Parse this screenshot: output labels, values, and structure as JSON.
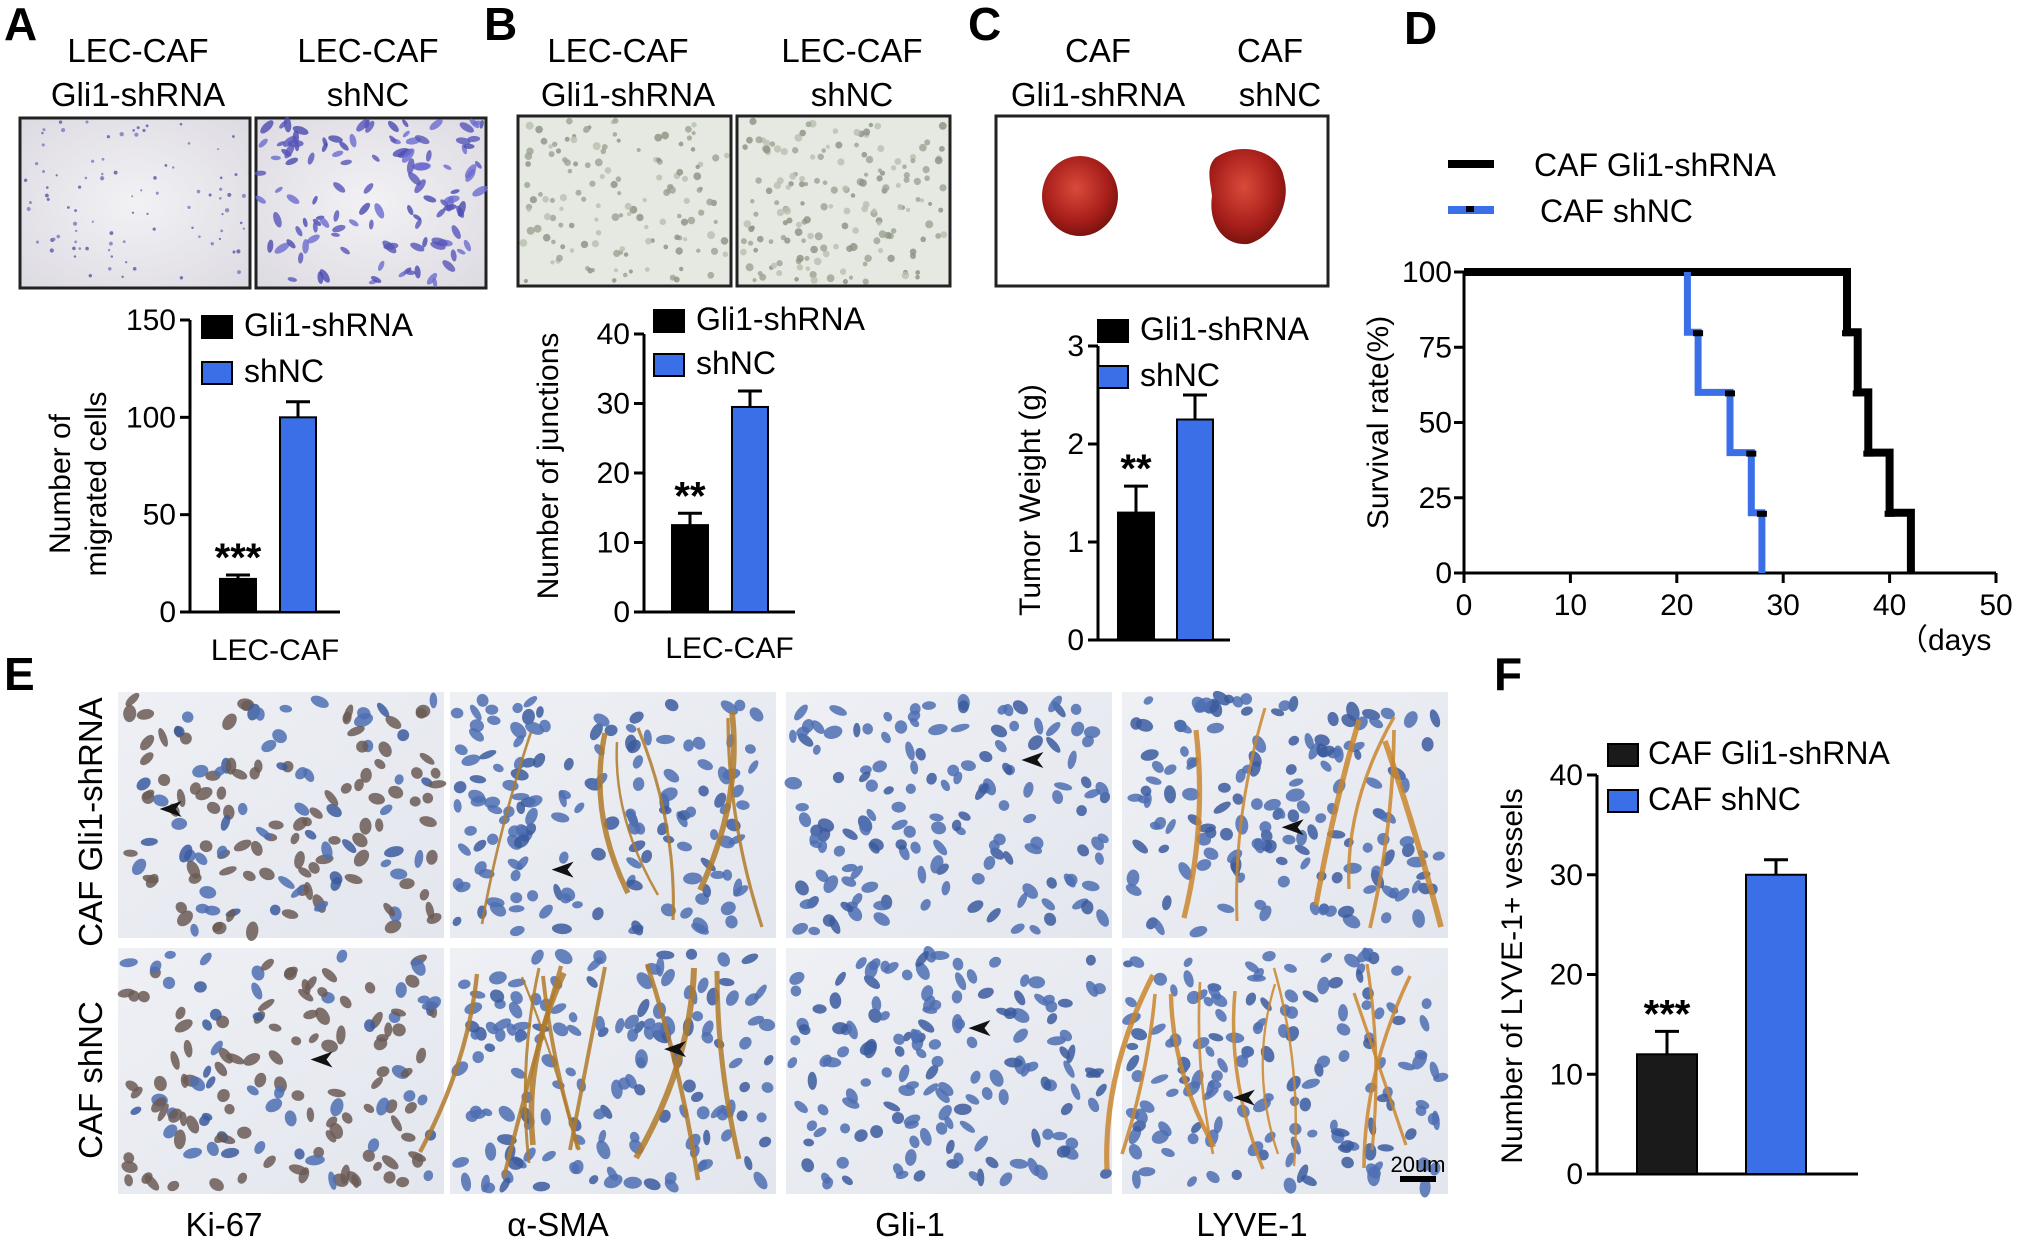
{
  "panels": {
    "A": {
      "label": "A",
      "col1": "LEC-CAF",
      "col1b": "Gli1-shRNA",
      "col2": "LEC-CAF",
      "col2b": "shNC"
    },
    "B": {
      "label": "B",
      "col1": "LEC-CAF",
      "col1b": "Gli1-shRNA",
      "col2": "LEC-CAF",
      "col2b": "shNC"
    },
    "C": {
      "label": "C",
      "col1": "CAF",
      "col1b": "Gli1-shRNA",
      "col2": "CAF",
      "col2b": "shNC"
    },
    "D": {
      "label": "D"
    },
    "E": {
      "label": "E",
      "row1": "CAF Gli1-shRNA",
      "row2": "CAF shNC",
      "stains": [
        "Ki-67",
        "α-SMA",
        "Gli-1",
        "LYVE-1"
      ],
      "scale": "20um"
    },
    "F": {
      "label": "F"
    }
  },
  "colors": {
    "black": "#000000",
    "blue": "#3a6fe8",
    "dark": "#1a1a1a"
  },
  "chart_data": [
    {
      "id": "A",
      "type": "bar",
      "ylabel": "Number of\nmigrated cells",
      "xlabel": "LEC-CAF",
      "ylim": [
        0,
        150
      ],
      "yticks": [
        "0",
        "50",
        "100",
        "150"
      ],
      "series": [
        {
          "name": "Gli1-shRNA",
          "value": 17,
          "error": 2,
          "color": "#000000",
          "annotation": "***"
        },
        {
          "name": "shNC",
          "value": 100,
          "error": 8,
          "color": "#3a6fe8",
          "annotation": ""
        }
      ]
    },
    {
      "id": "B",
      "type": "bar",
      "ylabel": "Number of junctions",
      "xlabel": "LEC-CAF",
      "ylim": [
        0,
        40
      ],
      "yticks": [
        "0",
        "10",
        "20",
        "30",
        "40"
      ],
      "series": [
        {
          "name": "Gli1-shRNA",
          "value": 12.5,
          "error": 1.7,
          "color": "#000000",
          "annotation": "**"
        },
        {
          "name": "shNC",
          "value": 29.5,
          "error": 2.3,
          "color": "#3a6fe8",
          "annotation": ""
        }
      ]
    },
    {
      "id": "C",
      "type": "bar",
      "ylabel": "Tumor Weight (g)",
      "xlabel": "",
      "ylim": [
        0,
        3
      ],
      "yticks": [
        "0",
        "1",
        "2",
        "3"
      ],
      "series": [
        {
          "name": "Gli1-shRNA",
          "value": 1.3,
          "error": 0.27,
          "color": "#000000",
          "annotation": "**"
        },
        {
          "name": "shNC",
          "value": 2.25,
          "error": 0.25,
          "color": "#3a6fe8",
          "annotation": ""
        }
      ]
    },
    {
      "id": "D",
      "type": "line",
      "ylabel": "Survival rate(%)",
      "xlabel": "（days",
      "xlim": [
        0,
        50
      ],
      "ylim": [
        0,
        100
      ],
      "xticks": [
        "0",
        "10",
        "20",
        "30",
        "40",
        "50"
      ],
      "yticks": [
        "0",
        "25",
        "50",
        "75",
        "100"
      ],
      "series": [
        {
          "name": "CAF Gli1-shRNA",
          "color": "#000000",
          "x": [
            0,
            36,
            36,
            37,
            37,
            38,
            38,
            40,
            40,
            42,
            42
          ],
          "y": [
            100,
            100,
            80,
            80,
            60,
            60,
            40,
            40,
            20,
            20,
            0
          ]
        },
        {
          "name": "CAF shNC",
          "color": "#3a6fe8",
          "x": [
            21,
            21,
            22,
            22,
            25,
            25,
            27,
            27,
            28,
            28
          ],
          "y": [
            100,
            80,
            80,
            60,
            60,
            40,
            40,
            20,
            20,
            0
          ]
        }
      ]
    },
    {
      "id": "F",
      "type": "bar",
      "ylabel": "Number of LYVE-1+ vessels",
      "xlabel": "",
      "ylim": [
        0,
        40
      ],
      "yticks": [
        "0",
        "10",
        "20",
        "30",
        "40"
      ],
      "series": [
        {
          "name": "CAF Gli1-shRNA",
          "value": 12,
          "error": 2.3,
          "color": "#1a1a1a",
          "annotation": "***"
        },
        {
          "name": "CAF shNC",
          "value": 30,
          "error": 1.5,
          "color": "#3a6fe8",
          "annotation": ""
        }
      ]
    }
  ]
}
